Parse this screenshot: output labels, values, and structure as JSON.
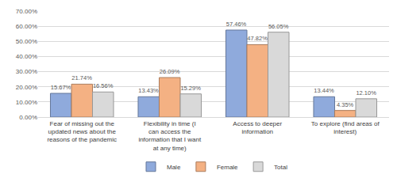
{
  "chart_data": {
    "type": "bar",
    "categories": [
      "Fear of missing out the updated news about the reasons of the pandemic",
      "Flexibility in time (I can access the information that I want at any time)",
      "Access to deeper information",
      "To explore (find areas of interest)"
    ],
    "series": [
      {
        "name": "Male",
        "color": "#8faadc",
        "values": [
          15.67,
          13.43,
          57.46,
          13.44
        ],
        "value_labels": [
          "15.67%",
          "13.43%",
          "57.46%",
          "13.44%"
        ]
      },
      {
        "name": "Female",
        "color": "#f4b183",
        "values": [
          21.74,
          26.09,
          47.82,
          4.35
        ],
        "value_labels": [
          "21.74%",
          "26.09%",
          "47.82%",
          "4.35%"
        ]
      },
      {
        "name": "Total",
        "color": "#d9d9d9",
        "values": [
          16.56,
          15.29,
          56.05,
          12.1
        ],
        "value_labels": [
          "16.56%",
          "15.29%",
          "56.05%",
          "12.10%"
        ]
      }
    ],
    "ylim": [
      0,
      70
    ],
    "yticks": [
      {
        "value": 0,
        "label": "0.00%"
      },
      {
        "value": 10,
        "label": "10.00%"
      },
      {
        "value": 20,
        "label": "20.00%"
      },
      {
        "value": 30,
        "label": "30.00%"
      },
      {
        "value": 40,
        "label": "40.00%"
      },
      {
        "value": 50,
        "label": "50.00%"
      },
      {
        "value": 60,
        "label": "60.00%"
      },
      {
        "value": 70,
        "label": "70.00%"
      }
    ],
    "grid": true,
    "data_labels": true,
    "legend": "bottom"
  }
}
